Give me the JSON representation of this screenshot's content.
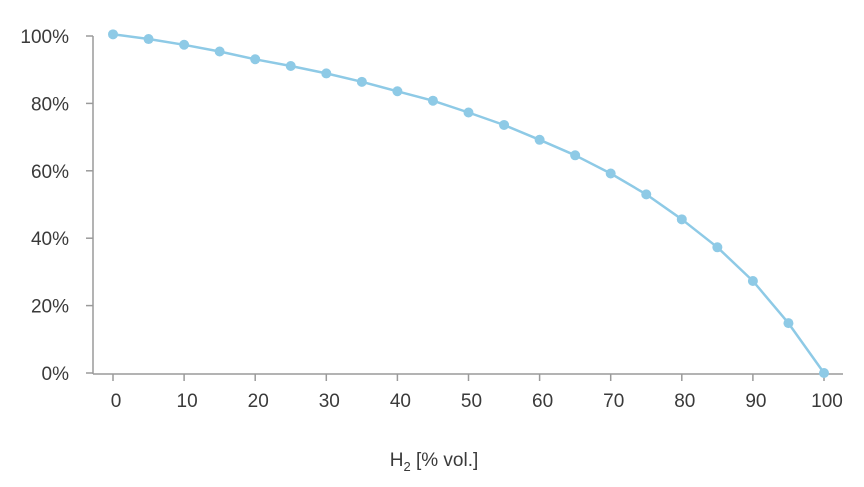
{
  "chart_data": {
    "type": "line",
    "title": "",
    "xlabel": {
      "main": "H",
      "sub": "2",
      "suffix": " [% vol.]"
    },
    "ylabel": "",
    "xlim": [
      0,
      100
    ],
    "ylim": [
      0,
      100
    ],
    "x_ticks": [
      0,
      10,
      20,
      30,
      40,
      50,
      60,
      70,
      80,
      90,
      100
    ],
    "y_ticks": [
      0,
      20,
      40,
      60,
      80,
      100
    ],
    "y_tick_format": "percent",
    "grid": false,
    "series": [
      {
        "name": "",
        "color": "#8ecae6",
        "x": [
          0,
          5,
          10,
          15,
          20,
          25,
          30,
          35,
          40,
          45,
          50,
          55,
          60,
          65,
          70,
          75,
          80,
          85,
          90,
          95,
          100
        ],
        "y": [
          100.5,
          99.1,
          97.4,
          95.4,
          93.1,
          91.1,
          88.9,
          86.4,
          83.6,
          80.8,
          77.3,
          73.6,
          69.2,
          64.6,
          59.2,
          53.0,
          45.6,
          37.3,
          27.3,
          14.8,
          0.0
        ]
      }
    ]
  }
}
